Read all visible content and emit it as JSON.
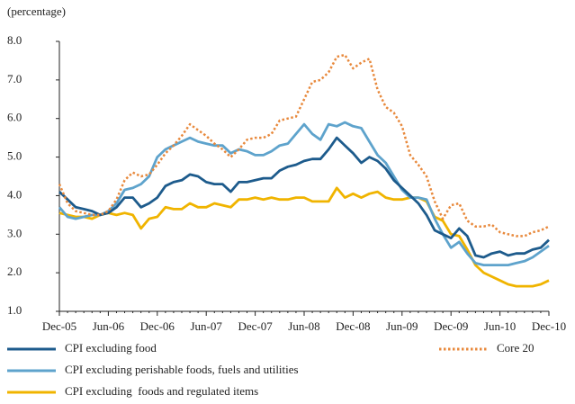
{
  "chart_data": {
    "type": "line",
    "y_label": "(percentage)",
    "categories": [
      "Dec-05",
      null,
      null,
      null,
      null,
      null,
      "Jun-06",
      null,
      null,
      null,
      null,
      null,
      "Dec-06",
      null,
      null,
      null,
      null,
      null,
      "Jun-07",
      null,
      null,
      null,
      null,
      null,
      "Dec-07",
      null,
      null,
      null,
      null,
      null,
      "Jun-08",
      null,
      null,
      null,
      null,
      null,
      "Dec-08",
      null,
      null,
      null,
      null,
      null,
      "Jun-09",
      null,
      null,
      null,
      null,
      null,
      "Dec-09",
      null,
      null,
      null,
      null,
      null,
      "Jun-10",
      null,
      null,
      null,
      null,
      null,
      "Dec-10"
    ],
    "ylim": [
      1,
      8
    ],
    "yticks": [
      {
        "value": 1,
        "label": "1.0"
      },
      {
        "value": 2,
        "label": "2.0"
      },
      {
        "value": 3,
        "label": "3.0"
      },
      {
        "value": 4,
        "label": "4.0"
      },
      {
        "value": 5,
        "label": "5.0"
      },
      {
        "value": 6,
        "label": "6.0"
      },
      {
        "value": 7,
        "label": "7.0"
      },
      {
        "value": 8,
        "label": "8.0"
      }
    ],
    "grid": false,
    "series": [
      {
        "name": "CPI excluding food",
        "color": "#1d5b8c",
        "style": "solid",
        "values": [
          4.1,
          3.9,
          3.7,
          3.65,
          3.6,
          3.5,
          3.55,
          3.7,
          3.95,
          3.95,
          3.7,
          3.8,
          3.95,
          4.25,
          4.35,
          4.4,
          4.55,
          4.5,
          4.35,
          4.3,
          4.3,
          4.1,
          4.35,
          4.35,
          4.4,
          4.45,
          4.45,
          4.65,
          4.75,
          4.8,
          4.9,
          4.95,
          4.95,
          5.2,
          5.5,
          5.3,
          5.1,
          4.85,
          5.0,
          4.9,
          4.7,
          4.4,
          4.2,
          4.0,
          3.8,
          3.5,
          3.1,
          3.0,
          2.9,
          3.15,
          2.95,
          2.45,
          2.4,
          2.5,
          2.55,
          2.45,
          2.5,
          2.5,
          2.6,
          2.65,
          2.85
        ]
      },
      {
        "name": "CPI excluding perishable foods, fuels and utilities",
        "color": "#5ea3cc",
        "style": "solid",
        "values": [
          3.7,
          3.45,
          3.4,
          3.45,
          3.5,
          3.5,
          3.6,
          3.8,
          4.15,
          4.2,
          4.3,
          4.5,
          5.0,
          5.2,
          5.3,
          5.4,
          5.5,
          5.4,
          5.35,
          5.3,
          5.3,
          5.1,
          5.2,
          5.15,
          5.05,
          5.05,
          5.15,
          5.3,
          5.35,
          5.6,
          5.85,
          5.6,
          5.45,
          5.85,
          5.8,
          5.9,
          5.8,
          5.75,
          5.4,
          5.05,
          4.85,
          4.5,
          4.15,
          3.95,
          3.95,
          3.9,
          3.4,
          3.0,
          2.65,
          2.8,
          2.5,
          2.25,
          2.2,
          2.2,
          2.2,
          2.2,
          2.25,
          2.3,
          2.4,
          2.55,
          2.7
        ]
      },
      {
        "name": "CPI excluding  foods and regulated items",
        "color": "#f0b400",
        "style": "solid",
        "values": [
          3.55,
          3.5,
          3.45,
          3.45,
          3.4,
          3.5,
          3.55,
          3.5,
          3.55,
          3.5,
          3.15,
          3.4,
          3.45,
          3.7,
          3.65,
          3.65,
          3.8,
          3.7,
          3.7,
          3.8,
          3.75,
          3.7,
          3.9,
          3.9,
          3.95,
          3.9,
          3.95,
          3.9,
          3.9,
          3.95,
          3.95,
          3.85,
          3.85,
          3.85,
          4.2,
          3.95,
          4.05,
          3.95,
          4.05,
          4.1,
          3.95,
          3.9,
          3.9,
          3.95,
          3.95,
          3.85,
          3.45,
          3.35,
          3.0,
          2.95,
          2.6,
          2.2,
          2.0,
          1.9,
          1.8,
          1.7,
          1.65,
          1.65,
          1.65,
          1.7,
          1.8
        ]
      },
      {
        "name": "Core 20",
        "color": "#e8893c",
        "style": "dotted",
        "values": [
          4.3,
          3.8,
          3.6,
          3.55,
          3.5,
          3.5,
          3.6,
          3.9,
          4.4,
          4.6,
          4.5,
          4.55,
          4.8,
          5.1,
          5.3,
          5.55,
          5.85,
          5.7,
          5.55,
          5.35,
          5.2,
          5.0,
          5.2,
          5.45,
          5.5,
          5.5,
          5.6,
          5.95,
          6.0,
          6.05,
          6.5,
          6.95,
          7.0,
          7.2,
          7.6,
          7.65,
          7.3,
          7.45,
          7.55,
          6.75,
          6.3,
          6.15,
          5.8,
          5.05,
          4.8,
          4.5,
          3.85,
          3.4,
          3.75,
          3.8,
          3.35,
          3.2,
          3.2,
          3.25,
          3.05,
          3.0,
          2.95,
          2.95,
          3.05,
          3.1,
          3.2
        ]
      }
    ]
  }
}
